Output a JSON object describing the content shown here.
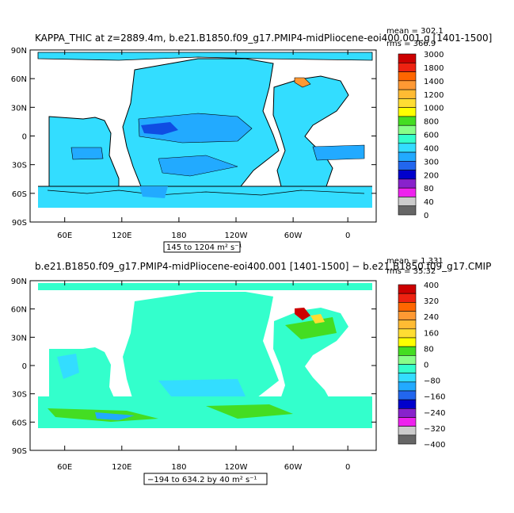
{
  "panels": [
    {
      "title": "KAPPA_THIC at z=2889.4m, b.e21.B1850.f09_g17.PMIP4-midPliocene-eoi400.001.g [1401-1500]",
      "stats": {
        "mean": "mean = 302.1",
        "rms": "rms = 366.9"
      },
      "y_ticks": [
        "90N",
        "60N",
        "30N",
        "0",
        "30S",
        "60S",
        "90S"
      ],
      "x_ticks": [
        "60E",
        "120E",
        "180",
        "120W",
        "60W",
        "0"
      ],
      "range_label": "145 to 1204 m² s⁻¹",
      "colorbar_labels": [
        "3000",
        "1800",
        "1400",
        "1200",
        "1000",
        "800",
        "600",
        "400",
        "300",
        "200",
        "80",
        "40",
        "0"
      ],
      "colorbar_colors": [
        "#cc0000",
        "#ee2211",
        "#ff6600",
        "#ff9933",
        "#ffbb33",
        "#ffdd33",
        "#ffff00",
        "#44dd22",
        "#88ff88",
        "#33ffcc",
        "#33ddff",
        "#22aaff",
        "#2266ee",
        "#0000cc",
        "#8822cc",
        "#ee22ee",
        "#cccccc",
        "#666666"
      ]
    },
    {
      "title": "b.e21.B1850.f09_g17.PMIP4-midPliocene-eoi400.001 [1401-1500] − b.e21.B1850.f09_g17.CMIP",
      "stats": {
        "mean": "mean = 1.331",
        "rms": "rms = 35.32"
      },
      "y_ticks": [
        "90N",
        "60N",
        "30N",
        "0",
        "30S",
        "60S",
        "90S"
      ],
      "x_ticks": [
        "60E",
        "120E",
        "180",
        "120W",
        "60W",
        "0"
      ],
      "range_label": "−194 to 634.2 by 40 m² s⁻¹",
      "colorbar_labels": [
        "400",
        "320",
        "240",
        "160",
        "80",
        "0",
        "−80",
        "−160",
        "−240",
        "−320",
        "−400"
      ],
      "colorbar_colors": [
        "#cc0000",
        "#ee2211",
        "#ff6600",
        "#ff9933",
        "#ffbb33",
        "#ffdd33",
        "#ffff00",
        "#44dd22",
        "#88ff88",
        "#33ffcc",
        "#33ddff",
        "#22aaff",
        "#2266ee",
        "#0000cc",
        "#8822cc",
        "#ee22ee",
        "#cccccc",
        "#666666"
      ]
    }
  ],
  "fill_colors": {
    "ocean_main": "#33ddff",
    "ocean_alt": "#22aaff",
    "ocean_green": "#33ffcc",
    "land": "#ffffff"
  }
}
